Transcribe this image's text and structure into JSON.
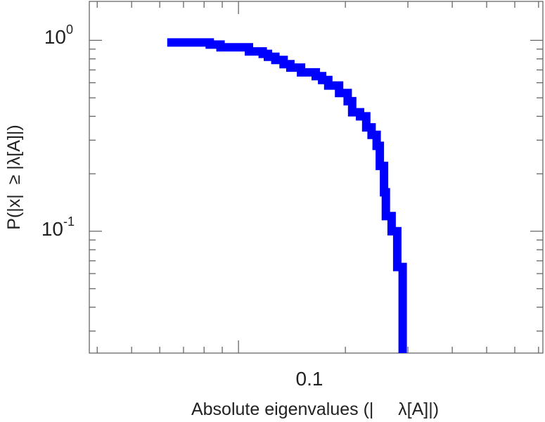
{
  "chart_data": {
    "type": "line",
    "title": "",
    "xlabel": "Absolute eigenvalues (|     λ[A]|)",
    "ylabel": "P(|x|  ≥ |λ[A]|)",
    "x_scale": "log",
    "y_scale": "log",
    "xlim": [
      0.038,
      0.72
    ],
    "ylim": [
      0.023,
      1.6
    ],
    "x_tick_labels": [
      {
        "value": 0.1,
        "label": "0.1"
      }
    ],
    "y_tick_labels": [
      {
        "value": 1,
        "base": "10",
        "exp": "0"
      },
      {
        "value": 0.1,
        "base": "10",
        "exp": "-1"
      }
    ],
    "grid": false,
    "line_color": "#0000ff",
    "series": [
      {
        "style": "step",
        "x": [
          0.063,
          0.083,
          0.089,
          0.107,
          0.117,
          0.121,
          0.127,
          0.134,
          0.14,
          0.15,
          0.165,
          0.172,
          0.179,
          0.192,
          0.203,
          0.209,
          0.22,
          0.229,
          0.237,
          0.245,
          0.25,
          0.257,
          0.26,
          0.27,
          0.28,
          0.29
        ],
        "y": [
          0.975,
          0.95,
          0.92,
          0.875,
          0.85,
          0.82,
          0.79,
          0.75,
          0.72,
          0.68,
          0.65,
          0.62,
          0.58,
          0.53,
          0.48,
          0.42,
          0.4,
          0.35,
          0.32,
          0.28,
          0.22,
          0.16,
          0.12,
          0.1,
          0.065,
          0.04
        ]
      }
    ]
  }
}
